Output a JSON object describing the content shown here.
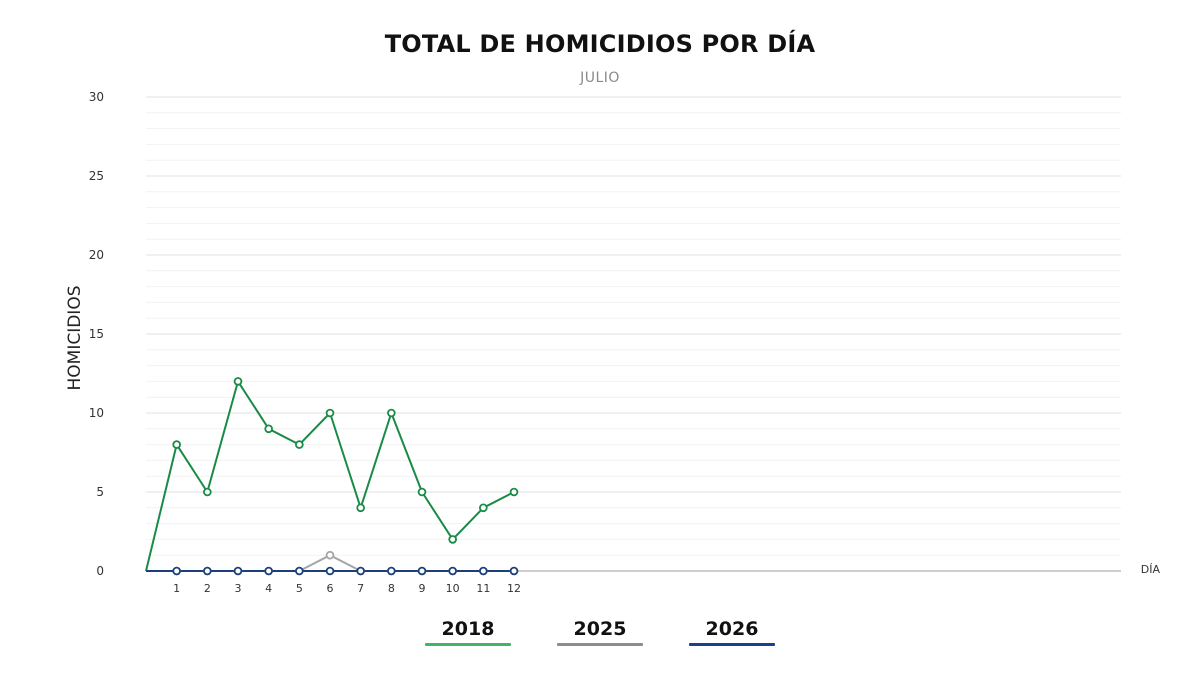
{
  "chart_data": {
    "type": "line",
    "title": "TOTAL DE HOMICIDIOS POR DÍA",
    "subtitle": "JULIO",
    "ylabel": "HOMICIDIOS",
    "xlabel": "DÍA",
    "x": [
      0,
      1,
      2,
      3,
      4,
      5,
      6,
      7,
      8,
      9,
      10,
      11,
      12
    ],
    "x_tick_labels": [
      "1",
      "2",
      "3",
      "4",
      "5",
      "6",
      "7",
      "8",
      "9",
      "10",
      "11",
      "12"
    ],
    "y_ticks": [
      "0",
      "5",
      "10",
      "15",
      "20",
      "25",
      "30"
    ],
    "ylim": [
      0,
      30
    ],
    "xlim": [
      0,
      31
    ],
    "grid": true,
    "legend_position": "bottom",
    "series": [
      {
        "name": "2018",
        "color": "#1a8a47",
        "legend_color": "#3cb862",
        "values": [
          0,
          8,
          5,
          12,
          9,
          8,
          10,
          4,
          10,
          5,
          2,
          4,
          5
        ]
      },
      {
        "name": "2025",
        "color": "#a6a6a6",
        "legend_color": "#8c8c8c",
        "values": [
          0,
          0,
          0,
          0,
          0,
          0,
          1,
          0,
          0,
          0,
          0,
          0,
          0
        ]
      },
      {
        "name": "2026",
        "color": "#1b3f7a",
        "legend_color": "#1c3f8c",
        "values": [
          0,
          0,
          0,
          0,
          0,
          0,
          0,
          0,
          0,
          0,
          0,
          0,
          0
        ]
      }
    ]
  }
}
